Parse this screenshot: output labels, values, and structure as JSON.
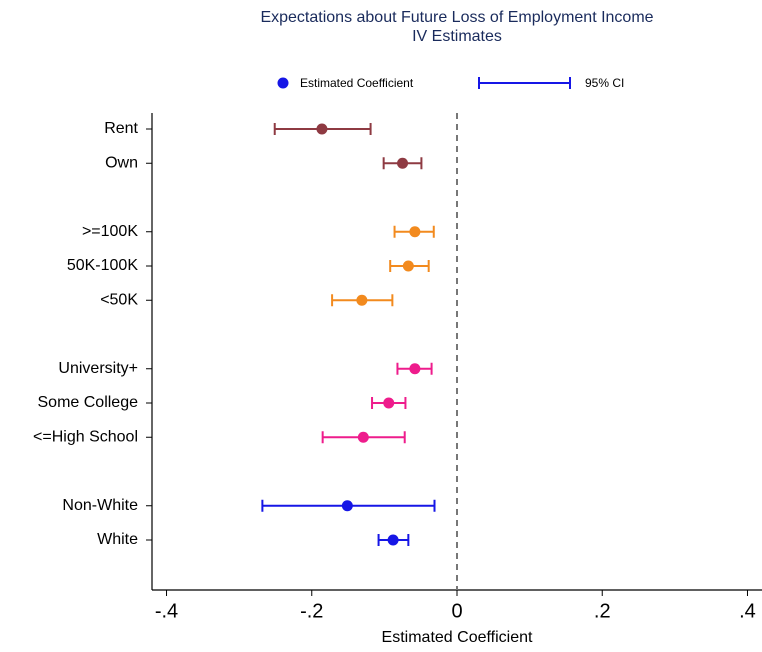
{
  "chart_data": {
    "type": "coefplot",
    "title": "Expectations about Future Loss of Employment Income",
    "subtitle": "IV Estimates",
    "xlabel": "Estimated Coefficient",
    "xlim": [
      -0.42,
      0.42
    ],
    "xticks": [
      {
        "value": -0.4,
        "label": "-.4"
      },
      {
        "value": -0.2,
        "label": "-.2"
      },
      0,
      {
        "value": 0.2,
        "label": ".2"
      },
      {
        "value": 0.4,
        "label": ".4"
      }
    ],
    "xline": 0,
    "legend": {
      "point": "Estimated Coefficient",
      "interval": "95% CI",
      "color": "#1616e6",
      "position": "top"
    },
    "series": [
      {
        "color": "#8e3a42",
        "categories": [
          "Rent",
          "Own"
        ],
        "values": [
          -0.186,
          -0.075
        ],
        "lower": [
          -0.251,
          -0.101
        ],
        "upper": [
          -0.119,
          -0.049
        ]
      },
      {
        "color": "#f28a1e",
        "categories": [
          ">=100K",
          "50K-100K",
          "<50K"
        ],
        "values": [
          -0.058,
          -0.067,
          -0.131
        ],
        "lower": [
          -0.086,
          -0.092,
          -0.172
        ],
        "upper": [
          -0.032,
          -0.039,
          -0.089
        ]
      },
      {
        "color": "#ee1c8c",
        "categories": [
          "University+",
          "Some College",
          "<=High School"
        ],
        "values": [
          -0.058,
          -0.094,
          -0.129
        ],
        "lower": [
          -0.082,
          -0.117,
          -0.185
        ],
        "upper": [
          -0.035,
          -0.071,
          -0.072
        ]
      },
      {
        "color": "#1616e6",
        "categories": [
          "Non-White",
          "White"
        ],
        "values": [
          -0.151,
          -0.088
        ],
        "lower": [
          -0.268,
          -0.108
        ],
        "upper": [
          -0.031,
          -0.067
        ]
      }
    ]
  }
}
